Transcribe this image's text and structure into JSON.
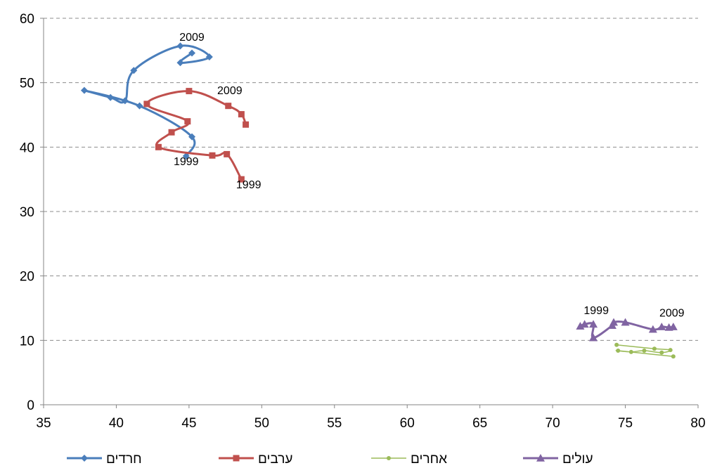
{
  "chart_data": {
    "type": "scatter",
    "title": "",
    "xlabel": "",
    "ylabel": "",
    "xlim": [
      35,
      80
    ],
    "ylim": [
      0,
      60
    ],
    "x_ticks": [
      35,
      40,
      45,
      50,
      55,
      60,
      65,
      70,
      75,
      80
    ],
    "y_ticks": [
      0,
      10,
      20,
      30,
      40,
      50,
      60
    ],
    "grid": "horizontal dashed",
    "legend_position": "bottom",
    "series": [
      {
        "name": "חרדים",
        "color": "#4a7ebb",
        "marker": "diamond",
        "points": [
          [
            44.8,
            38.6
          ],
          [
            45.2,
            41.6
          ],
          [
            41.6,
            46.4
          ],
          [
            37.8,
            48.8
          ],
          [
            39.6,
            47.7
          ],
          [
            40.6,
            47.2
          ],
          [
            41.2,
            51.9
          ],
          [
            44.4,
            55.7
          ],
          [
            46.4,
            54.0
          ],
          [
            44.4,
            53.1
          ],
          [
            45.2,
            54.6
          ]
        ]
      },
      {
        "name": "ערבים",
        "color": "#c0504d",
        "marker": "square",
        "points": [
          [
            48.6,
            35.0
          ],
          [
            47.6,
            38.9
          ],
          [
            46.6,
            38.7
          ],
          [
            42.9,
            40.0
          ],
          [
            43.8,
            42.3
          ],
          [
            44.9,
            44.0
          ],
          [
            42.1,
            46.7
          ],
          [
            45.0,
            48.7
          ],
          [
            47.7,
            46.4
          ],
          [
            48.6,
            45.1
          ],
          [
            48.9,
            43.5
          ]
        ]
      },
      {
        "name": "אחרים",
        "color": "#9bbb59",
        "marker": "circle",
        "points": [
          [
            74.4,
            9.3
          ],
          [
            77.0,
            8.7
          ],
          [
            78.1,
            8.5
          ],
          [
            77.5,
            8.1
          ],
          [
            76.3,
            8.4
          ],
          [
            75.4,
            8.2
          ],
          [
            74.5,
            8.4
          ],
          [
            78.3,
            7.5
          ]
        ]
      },
      {
        "name": "עולים",
        "color": "#8064a2",
        "marker": "triangle",
        "points": [
          [
            71.9,
            12.2
          ],
          [
            72.2,
            12.5
          ],
          [
            72.8,
            12.5
          ],
          [
            72.8,
            10.4
          ],
          [
            74.1,
            12.3
          ],
          [
            74.2,
            12.8
          ],
          [
            75.0,
            12.8
          ],
          [
            76.9,
            11.7
          ],
          [
            77.5,
            12.1
          ],
          [
            78.0,
            12.0
          ],
          [
            78.3,
            12.1
          ]
        ]
      }
    ],
    "annotations": [
      {
        "text": "2009",
        "x": 45.2,
        "y": 56.5
      },
      {
        "text": "2009",
        "x": 47.8,
        "y": 48.2
      },
      {
        "text": "1999",
        "x": 44.8,
        "y": 37.2
      },
      {
        "text": "1999",
        "x": 49.1,
        "y": 33.6
      },
      {
        "text": "1999",
        "x": 73.0,
        "y": 14.1
      },
      {
        "text": "2009",
        "x": 78.2,
        "y": 13.7
      }
    ]
  }
}
